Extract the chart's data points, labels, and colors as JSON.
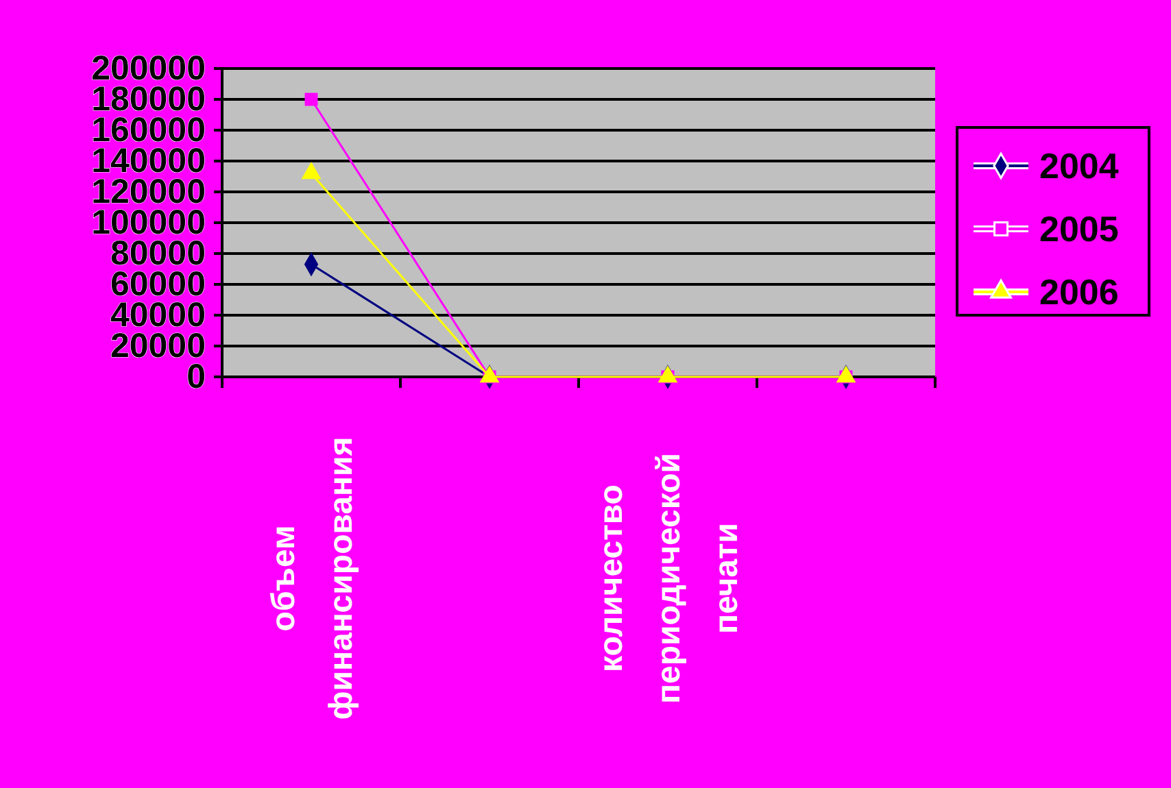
{
  "chart_data": {
    "type": "line",
    "categories": [
      "объем финансирования",
      null,
      "количество периодической печати",
      null
    ],
    "series": [
      {
        "name": "2004",
        "color": "#000080",
        "marker": "diamond",
        "values": [
          73000,
          0,
          0,
          0
        ]
      },
      {
        "name": "2005",
        "color": "#ff00ff",
        "marker": "square",
        "values": [
          180000,
          0,
          0,
          0
        ]
      },
      {
        "name": "2006",
        "color": "#ffff00",
        "marker": "triangle",
        "values": [
          132000,
          0,
          0,
          0
        ]
      }
    ],
    "ylim": [
      0,
      200000
    ],
    "yticks": [
      0,
      20000,
      40000,
      60000,
      80000,
      100000,
      120000,
      140000,
      160000,
      180000,
      200000
    ],
    "grid": "y",
    "legend": "right"
  }
}
